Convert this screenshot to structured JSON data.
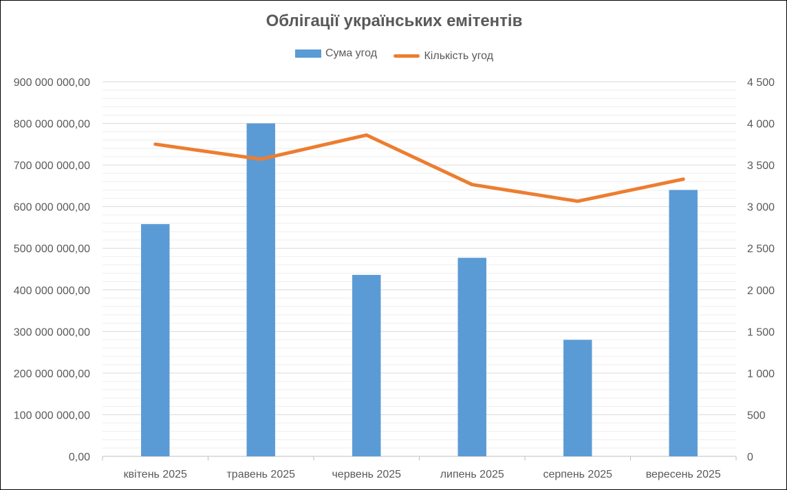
{
  "colors": {
    "bar": "#5B9BD5",
    "line": "#ED7D31",
    "grid_major": "#D9D9D9",
    "grid_minor": "#EEEEEE",
    "axis": "#BFBFBF",
    "text": "#595959",
    "title": "#595959"
  },
  "chart_data": {
    "type": "bar",
    "title": "Облігації українських емітентів",
    "legend_position": "top",
    "grid": true,
    "categories": [
      "квітень 2025",
      "травень 2025",
      "червень 2025",
      "липень 2025",
      "серпень 2025",
      "вересень 2025"
    ],
    "series": [
      {
        "name": "Сума угод",
        "type": "bar",
        "axis": "left",
        "values": [
          558000000,
          800000000,
          436000000,
          477000000,
          280000000,
          640000000
        ]
      },
      {
        "name": "Кількість угод",
        "type": "line",
        "axis": "right",
        "values": [
          3750,
          3570,
          3860,
          3265,
          3065,
          3330
        ]
      }
    ],
    "y_left": {
      "ylim": [
        0,
        900000000
      ],
      "ticks": [
        0,
        100000000,
        200000000,
        300000000,
        400000000,
        500000000,
        600000000,
        700000000,
        800000000,
        900000000
      ],
      "tick_labels": [
        "0,00",
        "100 000 000,00",
        "200 000 000,00",
        "300 000 000,00",
        "400 000 000,00",
        "500 000 000,00",
        "600 000 000,00",
        "700 000 000,00",
        "800 000 000,00",
        "900 000 000,00"
      ]
    },
    "y_right": {
      "ylim": [
        0,
        4500
      ],
      "ticks": [
        0,
        500,
        1000,
        1500,
        2000,
        2500,
        3000,
        3500,
        4000,
        4500
      ],
      "tick_labels": [
        "0",
        "500",
        "1 000",
        "1 500",
        "2 000",
        "2 500",
        "3 000",
        "3 500",
        "4 000",
        "4 500"
      ]
    }
  }
}
